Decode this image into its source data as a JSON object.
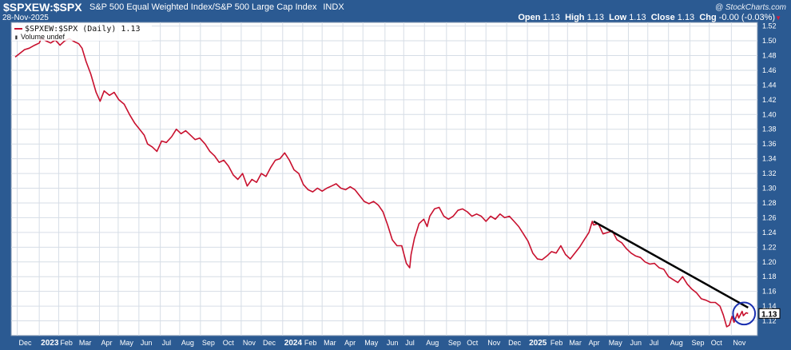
{
  "header": {
    "symbol": "$SPXEW:$SPX",
    "name": "S&P 500 Equal Weighted Index/S&P 500 Large Cap Index",
    "exchange": "INDX",
    "date": "28-Nov-2025",
    "brand": "@ StockCharts.com",
    "ohlc": {
      "open_label": "Open",
      "open": "1.13",
      "high_label": "High",
      "high": "1.13",
      "low_label": "Low",
      "low": "1.13",
      "close_label": "Close",
      "close": "1.13",
      "chg_label": "Chg",
      "chg": "-0.00 (-0.03%)"
    }
  },
  "legend": {
    "series_label": "$SPXEW:$SPX (Daily) 1.13",
    "volume_label": "Volume undef"
  },
  "colors": {
    "background": "#2b5a92",
    "plot": "#ffffff",
    "series": "#c8102e",
    "trendline": "#000000",
    "circle": "#1a2fb0"
  },
  "chart_data": {
    "type": "line",
    "title": "S&P 500 Equal Weighted Index/S&P 500 Large Cap Index",
    "xlabel": "",
    "ylabel": "",
    "ylim": [
      1.1,
      1.525
    ],
    "grid": true,
    "y_axis_position": "right",
    "yticks": [
      "1.12",
      "1.14",
      "1.16",
      "1.18",
      "1.20",
      "1.22",
      "1.24",
      "1.26",
      "1.28",
      "1.30",
      "1.32",
      "1.34",
      "1.36",
      "1.38",
      "1.40",
      "1.42",
      "1.44",
      "1.46",
      "1.48",
      "1.50",
      "1.52"
    ],
    "xticks": [
      {
        "label": "Dec",
        "date": "2022-12-01"
      },
      {
        "label": "2023",
        "date": "2023-01-03",
        "bold": true
      },
      {
        "label": "Feb",
        "date": "2023-02-01"
      },
      {
        "label": "Mar",
        "date": "2023-03-01"
      },
      {
        "label": "Apr",
        "date": "2023-04-03"
      },
      {
        "label": "May",
        "date": "2023-05-01"
      },
      {
        "label": "Jun",
        "date": "2023-06-01"
      },
      {
        "label": "Jul",
        "date": "2023-07-03"
      },
      {
        "label": "Aug",
        "date": "2023-08-01"
      },
      {
        "label": "Sep",
        "date": "2023-09-01"
      },
      {
        "label": "Oct",
        "date": "2023-10-02"
      },
      {
        "label": "Nov",
        "date": "2023-11-01"
      },
      {
        "label": "Dec",
        "date": "2023-12-01"
      },
      {
        "label": "2024",
        "date": "2024-01-02",
        "bold": true
      },
      {
        "label": "Feb",
        "date": "2024-02-01"
      },
      {
        "label": "Mar",
        "date": "2024-03-01"
      },
      {
        "label": "Apr",
        "date": "2024-04-01"
      },
      {
        "label": "May",
        "date": "2024-05-01"
      },
      {
        "label": "Jun",
        "date": "2024-06-03"
      },
      {
        "label": "Jul",
        "date": "2024-07-01"
      },
      {
        "label": "Aug",
        "date": "2024-08-01"
      },
      {
        "label": "Sep",
        "date": "2024-09-03"
      },
      {
        "label": "Oct",
        "date": "2024-10-01"
      },
      {
        "label": "Nov",
        "date": "2024-11-01"
      },
      {
        "label": "Dec",
        "date": "2024-12-02"
      },
      {
        "label": "2025",
        "date": "2025-01-02",
        "bold": true
      },
      {
        "label": "Feb",
        "date": "2025-02-03"
      },
      {
        "label": "Mar",
        "date": "2025-03-03"
      },
      {
        "label": "Apr",
        "date": "2025-04-01"
      },
      {
        "label": "May",
        "date": "2025-05-01"
      },
      {
        "label": "Jun",
        "date": "2025-06-02"
      },
      {
        "label": "Jul",
        "date": "2025-07-01"
      },
      {
        "label": "Aug",
        "date": "2025-08-01"
      },
      {
        "label": "Sep",
        "date": "2025-09-02"
      },
      {
        "label": "Oct",
        "date": "2025-10-01"
      },
      {
        "label": "Nov",
        "date": "2025-11-03"
      }
    ],
    "xlim": [
      "2022-11-22",
      "2025-12-12"
    ],
    "last_value_label": "1.13",
    "series": [
      {
        "name": "$SPXEW:$SPX (Daily)",
        "points": [
          [
            "2022-11-28",
            1.478
          ],
          [
            "2022-12-05",
            1.483
          ],
          [
            "2022-12-12",
            1.488
          ],
          [
            "2022-12-19",
            1.49
          ],
          [
            "2022-12-27",
            1.494
          ],
          [
            "2023-01-03",
            1.497
          ],
          [
            "2023-01-06",
            1.504
          ],
          [
            "2023-01-13",
            1.5
          ],
          [
            "2023-01-20",
            1.497
          ],
          [
            "2023-01-27",
            1.501
          ],
          [
            "2023-02-03",
            1.494
          ],
          [
            "2023-02-10",
            1.5
          ],
          [
            "2023-02-17",
            1.503
          ],
          [
            "2023-02-24",
            1.499
          ],
          [
            "2023-03-03",
            1.496
          ],
          [
            "2023-03-08",
            1.49
          ],
          [
            "2023-03-14",
            1.472
          ],
          [
            "2023-03-21",
            1.455
          ],
          [
            "2023-03-29",
            1.43
          ],
          [
            "2023-04-04",
            1.418
          ],
          [
            "2023-04-10",
            1.432
          ],
          [
            "2023-04-18",
            1.426
          ],
          [
            "2023-04-25",
            1.43
          ],
          [
            "2023-05-02",
            1.42
          ],
          [
            "2023-05-10",
            1.414
          ],
          [
            "2023-05-18",
            1.4
          ],
          [
            "2023-05-26",
            1.388
          ],
          [
            "2023-06-02",
            1.38
          ],
          [
            "2023-06-09",
            1.372
          ],
          [
            "2023-06-14",
            1.36
          ],
          [
            "2023-06-21",
            1.356
          ],
          [
            "2023-06-28",
            1.35
          ],
          [
            "2023-07-05",
            1.364
          ],
          [
            "2023-07-12",
            1.362
          ],
          [
            "2023-07-20",
            1.37
          ],
          [
            "2023-07-27",
            1.38
          ],
          [
            "2023-08-03",
            1.374
          ],
          [
            "2023-08-10",
            1.378
          ],
          [
            "2023-08-17",
            1.372
          ],
          [
            "2023-08-24",
            1.366
          ],
          [
            "2023-08-31",
            1.368
          ],
          [
            "2023-09-08",
            1.36
          ],
          [
            "2023-09-15",
            1.35
          ],
          [
            "2023-09-22",
            1.344
          ],
          [
            "2023-09-29",
            1.335
          ],
          [
            "2023-10-06",
            1.338
          ],
          [
            "2023-10-13",
            1.33
          ],
          [
            "2023-10-20",
            1.318
          ],
          [
            "2023-10-27",
            1.312
          ],
          [
            "2023-11-03",
            1.32
          ],
          [
            "2023-11-10",
            1.303
          ],
          [
            "2023-11-17",
            1.312
          ],
          [
            "2023-11-24",
            1.308
          ],
          [
            "2023-12-01",
            1.32
          ],
          [
            "2023-12-08",
            1.316
          ],
          [
            "2023-12-15",
            1.328
          ],
          [
            "2023-12-22",
            1.338
          ],
          [
            "2023-12-29",
            1.34
          ],
          [
            "2024-01-05",
            1.348
          ],
          [
            "2024-01-12",
            1.338
          ],
          [
            "2024-01-19",
            1.325
          ],
          [
            "2024-01-26",
            1.32
          ],
          [
            "2024-02-02",
            1.305
          ],
          [
            "2024-02-09",
            1.298
          ],
          [
            "2024-02-16",
            1.295
          ],
          [
            "2024-02-23",
            1.3
          ],
          [
            "2024-03-01",
            1.296
          ],
          [
            "2024-03-08",
            1.3
          ],
          [
            "2024-03-15",
            1.303
          ],
          [
            "2024-03-22",
            1.306
          ],
          [
            "2024-03-29",
            1.3
          ],
          [
            "2024-04-05",
            1.298
          ],
          [
            "2024-04-12",
            1.302
          ],
          [
            "2024-04-19",
            1.298
          ],
          [
            "2024-04-26",
            1.29
          ],
          [
            "2024-05-03",
            1.282
          ],
          [
            "2024-05-10",
            1.279
          ],
          [
            "2024-05-17",
            1.282
          ],
          [
            "2024-05-24",
            1.277
          ],
          [
            "2024-05-31",
            1.268
          ],
          [
            "2024-06-07",
            1.25
          ],
          [
            "2024-06-14",
            1.23
          ],
          [
            "2024-06-21",
            1.222
          ],
          [
            "2024-06-28",
            1.222
          ],
          [
            "2024-07-05",
            1.198
          ],
          [
            "2024-07-10",
            1.192
          ],
          [
            "2024-07-12",
            1.21
          ],
          [
            "2024-07-17",
            1.232
          ],
          [
            "2024-07-24",
            1.252
          ],
          [
            "2024-07-31",
            1.258
          ],
          [
            "2024-08-05",
            1.248
          ],
          [
            "2024-08-09",
            1.262
          ],
          [
            "2024-08-16",
            1.272
          ],
          [
            "2024-08-23",
            1.274
          ],
          [
            "2024-08-30",
            1.262
          ],
          [
            "2024-09-06",
            1.258
          ],
          [
            "2024-09-13",
            1.262
          ],
          [
            "2024-09-20",
            1.27
          ],
          [
            "2024-09-27",
            1.272
          ],
          [
            "2024-10-04",
            1.268
          ],
          [
            "2024-10-11",
            1.262
          ],
          [
            "2024-10-18",
            1.265
          ],
          [
            "2024-10-25",
            1.262
          ],
          [
            "2024-11-01",
            1.255
          ],
          [
            "2024-11-08",
            1.262
          ],
          [
            "2024-11-15",
            1.258
          ],
          [
            "2024-11-22",
            1.265
          ],
          [
            "2024-11-29",
            1.26
          ],
          [
            "2024-12-06",
            1.262
          ],
          [
            "2024-12-13",
            1.255
          ],
          [
            "2024-12-20",
            1.248
          ],
          [
            "2024-12-27",
            1.238
          ],
          [
            "2025-01-03",
            1.228
          ],
          [
            "2025-01-10",
            1.212
          ],
          [
            "2025-01-17",
            1.204
          ],
          [
            "2025-01-24",
            1.203
          ],
          [
            "2025-01-31",
            1.208
          ],
          [
            "2025-02-07",
            1.214
          ],
          [
            "2025-02-14",
            1.212
          ],
          [
            "2025-02-21",
            1.222
          ],
          [
            "2025-02-28",
            1.21
          ],
          [
            "2025-03-07",
            1.204
          ],
          [
            "2025-03-14",
            1.212
          ],
          [
            "2025-03-21",
            1.22
          ],
          [
            "2025-03-28",
            1.23
          ],
          [
            "2025-04-04",
            1.24
          ],
          [
            "2025-04-09",
            1.255
          ],
          [
            "2025-04-11",
            1.25
          ],
          [
            "2025-04-18",
            1.252
          ],
          [
            "2025-04-25",
            1.238
          ],
          [
            "2025-05-02",
            1.24
          ],
          [
            "2025-05-09",
            1.242
          ],
          [
            "2025-05-16",
            1.23
          ],
          [
            "2025-05-23",
            1.226
          ],
          [
            "2025-05-30",
            1.218
          ],
          [
            "2025-06-06",
            1.212
          ],
          [
            "2025-06-13",
            1.208
          ],
          [
            "2025-06-20",
            1.206
          ],
          [
            "2025-06-27",
            1.2
          ],
          [
            "2025-07-04",
            1.197
          ],
          [
            "2025-07-11",
            1.198
          ],
          [
            "2025-07-18",
            1.192
          ],
          [
            "2025-07-25",
            1.19
          ],
          [
            "2025-08-01",
            1.18
          ],
          [
            "2025-08-08",
            1.176
          ],
          [
            "2025-08-15",
            1.172
          ],
          [
            "2025-08-22",
            1.18
          ],
          [
            "2025-08-29",
            1.17
          ],
          [
            "2025-09-05",
            1.163
          ],
          [
            "2025-09-12",
            1.158
          ],
          [
            "2025-09-19",
            1.15
          ],
          [
            "2025-09-26",
            1.148
          ],
          [
            "2025-10-03",
            1.145
          ],
          [
            "2025-10-10",
            1.145
          ],
          [
            "2025-10-17",
            1.14
          ],
          [
            "2025-10-22",
            1.128
          ],
          [
            "2025-10-27",
            1.112
          ],
          [
            "2025-10-31",
            1.114
          ],
          [
            "2025-11-04",
            1.126
          ],
          [
            "2025-11-07",
            1.118
          ],
          [
            "2025-11-12",
            1.13
          ],
          [
            "2025-11-14",
            1.124
          ],
          [
            "2025-11-19",
            1.133
          ],
          [
            "2025-11-21",
            1.127
          ],
          [
            "2025-11-25",
            1.131
          ],
          [
            "2025-11-28",
            1.13
          ]
        ]
      }
    ],
    "annotations": [
      {
        "type": "trendline",
        "from": [
          "2025-04-11",
          1.255
        ],
        "to": [
          "2025-11-28",
          1.138
        ]
      },
      {
        "type": "circle",
        "center": [
          "2025-11-22",
          1.13
        ],
        "radius_y": 0.015
      }
    ]
  }
}
